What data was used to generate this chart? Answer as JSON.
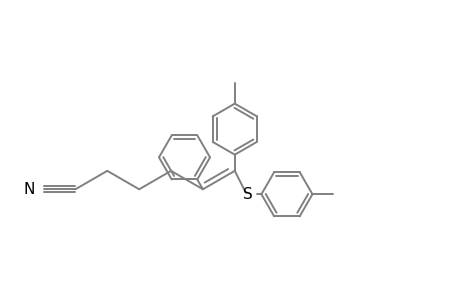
{
  "background_color": "#ffffff",
  "line_color": "#808080",
  "text_color": "#000000",
  "line_width": 1.4,
  "figsize": [
    4.6,
    3.0
  ],
  "dpi": 100,
  "xlim": [
    0,
    9.2
  ],
  "ylim": [
    0,
    6.0
  ]
}
